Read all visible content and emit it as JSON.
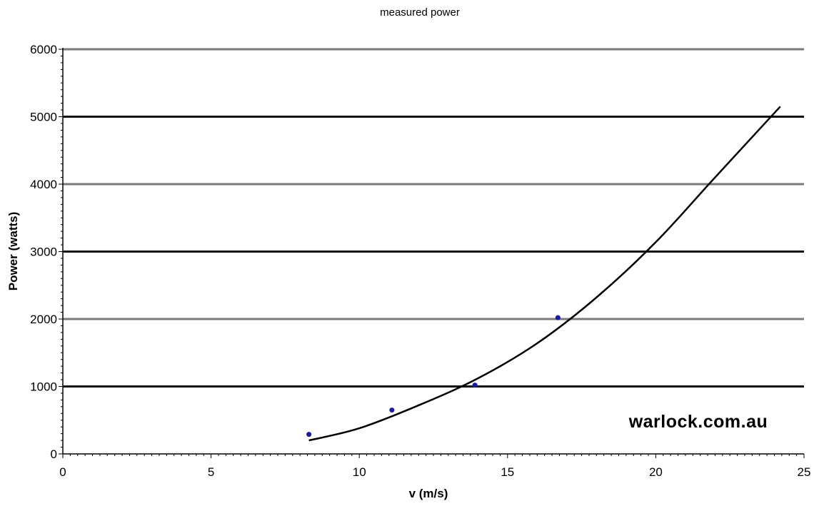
{
  "chart_data": {
    "type": "scatter",
    "title": "measured power",
    "xlabel": "v (m/s)",
    "ylabel": "Power (watts)",
    "xlim": [
      0,
      25
    ],
    "ylim": [
      0,
      6000
    ],
    "xticks": [
      0,
      5,
      10,
      15,
      20,
      25
    ],
    "yticks": [
      0,
      1000,
      2000,
      3000,
      4000,
      5000,
      6000
    ],
    "x_tick_labels": [
      "0",
      "5",
      "10",
      "15",
      "20",
      "25"
    ],
    "y_tick_labels": [
      "0",
      "1000",
      "2000",
      "3000",
      "4000",
      "5000",
      "6000"
    ],
    "grid": "horizontal",
    "legend": "none",
    "series": [
      {
        "type": "scatter",
        "x": [
          8.3,
          11.1,
          13.9,
          16.7
        ],
        "y": [
          290,
          650,
          1020,
          2020
        ],
        "color": "#1a1aa0"
      },
      {
        "type": "line",
        "x": [
          8.3,
          10,
          12,
          14,
          16,
          18,
          20,
          22,
          24.2
        ],
        "y": [
          200,
          380,
          720,
          1120,
          1640,
          2320,
          3140,
          4100,
          5150
        ],
        "color": "#000000"
      }
    ],
    "watermark": "warlock.com.au"
  }
}
